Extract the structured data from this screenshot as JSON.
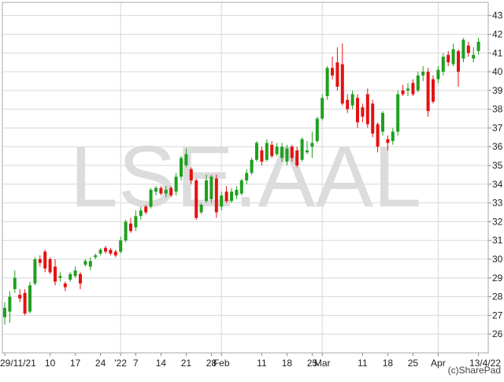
{
  "chart_data": {
    "type": "candlestick",
    "watermark": "LSE.AAL",
    "credit": "(c)SharePad",
    "up_color": "#1fa01f",
    "down_color": "#e41212",
    "ylim": [
      25,
      43.7
    ],
    "yticks": [
      26,
      27,
      28,
      29,
      30,
      31,
      32,
      33,
      34,
      35,
      36,
      37,
      38,
      39,
      40,
      41,
      42,
      43
    ],
    "grid": true,
    "categories": [
      "29/11/21",
      null,
      null,
      null,
      null,
      null,
      null,
      null,
      null,
      "10",
      null,
      null,
      null,
      null,
      "17",
      null,
      null,
      null,
      null,
      "24",
      null,
      null,
      null,
      "'22",
      null,
      null,
      "7",
      null,
      null,
      null,
      null,
      "14",
      null,
      null,
      null,
      null,
      "21",
      null,
      null,
      null,
      null,
      "28",
      null,
      "Feb",
      null,
      null,
      null,
      null,
      null,
      null,
      null,
      "11",
      null,
      null,
      null,
      null,
      "18",
      null,
      null,
      null,
      null,
      "25",
      null,
      "Mar",
      null,
      null,
      null,
      null,
      null,
      null,
      null,
      "11",
      null,
      null,
      null,
      null,
      "18",
      null,
      null,
      null,
      null,
      "25",
      null,
      null,
      null,
      null,
      "Apr",
      null,
      null,
      null,
      null,
      null,
      null,
      null,
      "13/4/22"
    ],
    "open": [
      26.9,
      27.2,
      28.4,
      28.1,
      28.2,
      27.2,
      28.7,
      30.0,
      30.4,
      30.0,
      29.6,
      29.0,
      28.7,
      28.9,
      29.1,
      29.2,
      29.7,
      29.6,
      30.1,
      30.3,
      30.6,
      30.5,
      30.4,
      30.4,
      31.0,
      31.9,
      31.7,
      32.3,
      32.8,
      32.8,
      33.6,
      33.8,
      33.5,
      33.8,
      33.6,
      34.4,
      35.0,
      34.8,
      34.2,
      32.5,
      33.1,
      33.2,
      34.3,
      32.8,
      33.6,
      33.1,
      33.4,
      33.5,
      34.2,
      34.6,
      35.3,
      35.8,
      35.3,
      36.1,
      35.6,
      35.4,
      35.2,
      36.0,
      35.8,
      35.3,
      35.7,
      36.0,
      36.3,
      37.5,
      38.7,
      40.2,
      40.5,
      40.4,
      38.5,
      38.2,
      38.6,
      38.1,
      38.8,
      38.3,
      37.2,
      36.8,
      36.4,
      36.3,
      36.8,
      39.0,
      39.0,
      39.4,
      39.0,
      39.8,
      40.0,
      39.6,
      39.6,
      40.0,
      40.9,
      40.4,
      41.1,
      40.7,
      41.4,
      40.7,
      41.1
    ],
    "high": [
      27.7,
      28.3,
      29.4,
      28.4,
      28.4,
      28.8,
      30.1,
      30.2,
      30.5,
      30.1,
      30.0,
      29.3,
      28.8,
      29.3,
      29.6,
      29.3,
      30.0,
      30.1,
      30.3,
      30.6,
      30.7,
      30.6,
      30.5,
      31.2,
      32.1,
      32.2,
      32.6,
      32.8,
      32.9,
      33.8,
      33.9,
      33.9,
      33.9,
      33.9,
      34.6,
      35.5,
      35.9,
      34.9,
      34.3,
      33.0,
      34.5,
      34.5,
      34.5,
      33.6,
      33.9,
      33.8,
      33.9,
      34.3,
      34.8,
      35.4,
      36.3,
      36.0,
      36.4,
      36.3,
      36.2,
      36.2,
      36.1,
      36.1,
      36.0,
      36.5,
      36.3,
      36.8,
      37.6,
      38.8,
      40.3,
      40.8,
      41.3,
      41.5,
      38.8,
      39.0,
      38.8,
      38.3,
      39.1,
      38.5,
      37.3,
      37.9,
      36.6,
      37.0,
      39.0,
      39.3,
      39.4,
      39.6,
      40.0,
      40.3,
      40.2,
      39.8,
      40.3,
      41.0,
      41.1,
      41.5,
      41.2,
      41.8,
      41.6,
      41.3,
      41.8
    ],
    "low": [
      26.5,
      26.6,
      28.2,
      27.7,
      27.0,
      27.1,
      28.6,
      29.6,
      29.3,
      29.2,
      28.6,
      28.8,
      28.3,
      28.8,
      29.0,
      28.4,
      29.6,
      29.4,
      30.0,
      30.2,
      30.3,
      30.2,
      30.1,
      30.3,
      30.9,
      31.4,
      31.5,
      32.1,
      32.4,
      32.7,
      33.4,
      33.4,
      33.3,
      33.3,
      33.4,
      34.2,
      34.9,
      34.0,
      32.1,
      32.4,
      33.0,
      33.0,
      32.2,
      32.6,
      33.0,
      33.0,
      33.2,
      33.4,
      34.0,
      34.5,
      35.2,
      35.0,
      35.2,
      35.4,
      35.5,
      35.2,
      35.0,
      35.2,
      34.9,
      35.2,
      35.6,
      35.4,
      36.2,
      37.4,
      38.5,
      39.6,
      39.0,
      38.2,
      37.8,
      38.0,
      37.0,
      37.3,
      37.0,
      36.5,
      35.7,
      36.6,
      35.8,
      36.1,
      36.6,
      38.7,
      38.7,
      38.7,
      38.9,
      39.5,
      37.6,
      38.3,
      39.4,
      39.8,
      40.3,
      40.3,
      39.2,
      40.5,
      40.8,
      40.5,
      40.9
    ],
    "close": [
      27.4,
      28.0,
      29.0,
      27.9,
      27.1,
      28.6,
      30.0,
      29.8,
      29.5,
      29.3,
      28.8,
      29.1,
      28.5,
      29.2,
      29.4,
      28.7,
      29.9,
      29.9,
      30.2,
      30.5,
      30.4,
      30.3,
      30.2,
      31.0,
      32.0,
      31.5,
      32.3,
      32.6,
      32.5,
      33.7,
      33.8,
      33.5,
      33.7,
      33.4,
      34.4,
      35.4,
      35.6,
      34.2,
      32.2,
      32.9,
      34.2,
      34.4,
      32.5,
      33.4,
      33.1,
      33.6,
      33.7,
      34.2,
      34.6,
      35.3,
      36.2,
      35.2,
      36.2,
      35.5,
      36.0,
      36.0,
      35.9,
      35.4,
      35.0,
      36.4,
      35.8,
      36.2,
      37.5,
      38.6,
      40.2,
      39.8,
      39.2,
      38.3,
      38.0,
      38.8,
      37.3,
      37.6,
      37.2,
      36.7,
      36.0,
      37.8,
      36.2,
      36.8,
      38.8,
      38.8,
      39.1,
      38.8,
      39.8,
      40.0,
      37.9,
      38.4,
      40.1,
      40.8,
      40.5,
      41.2,
      40.0,
      41.7,
      41.0,
      40.9,
      41.6
    ]
  }
}
